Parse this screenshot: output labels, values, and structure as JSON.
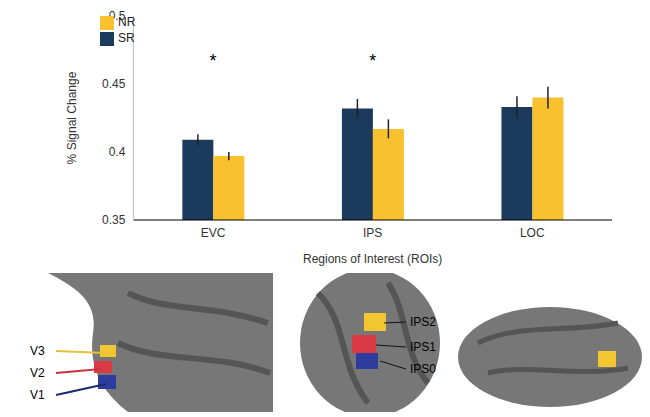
{
  "chart_data": {
    "type": "bar",
    "categories": [
      "EVC",
      "IPS",
      "LOC"
    ],
    "series": [
      {
        "name": "SR",
        "color": "#1b3a5c",
        "values": [
          0.409,
          0.432,
          0.433
        ],
        "errors": [
          0.004,
          0.007,
          0.008
        ]
      },
      {
        "name": "NR",
        "color": "#f9c12e",
        "values": [
          0.397,
          0.417,
          0.44
        ],
        "errors": [
          0.003,
          0.007,
          0.008
        ]
      }
    ],
    "x_label": "Regions of Interest (ROIs)",
    "y_label": "% Signal Change",
    "ylim": [
      0.35,
      0.5
    ],
    "yticks": [
      0.35,
      0.4,
      0.45,
      0.5
    ],
    "grid": false,
    "legend": "upper left",
    "annotations": [
      {
        "text": "*",
        "category": "EVC"
      },
      {
        "text": "*",
        "category": "IPS"
      }
    ]
  },
  "brain_figure": {
    "panels": [
      {
        "labels": [
          "V3",
          "V2",
          "V1"
        ]
      },
      {
        "labels": [
          "IPS2",
          "IPS1",
          "IPS0"
        ]
      },
      {
        "labels": []
      }
    ]
  }
}
